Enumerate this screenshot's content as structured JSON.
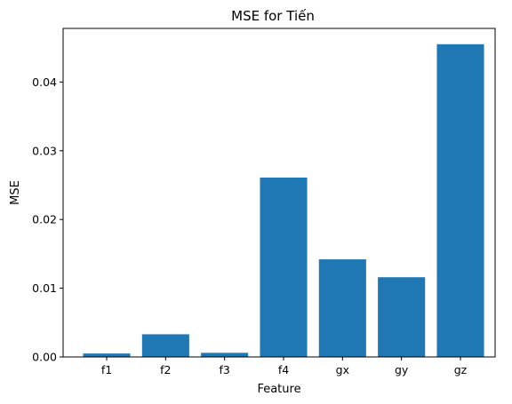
{
  "chart_data": {
    "type": "bar",
    "title": "MSE for Tiến",
    "xlabel": "Feature",
    "ylabel": "MSE",
    "categories": [
      "f1",
      "f2",
      "f3",
      "f4",
      "gx",
      "gy",
      "gz"
    ],
    "values": [
      0.0005,
      0.0033,
      0.0006,
      0.0261,
      0.0142,
      0.0116,
      0.0455
    ],
    "ylim": [
      0,
      0.0478
    ],
    "yticks": [
      0.0,
      0.01,
      0.02,
      0.03,
      0.04
    ],
    "ytick_labels": [
      "0.00",
      "0.01",
      "0.02",
      "0.03",
      "0.04"
    ],
    "bar_color": "#1f77b4",
    "grid": false,
    "legend": "none"
  }
}
